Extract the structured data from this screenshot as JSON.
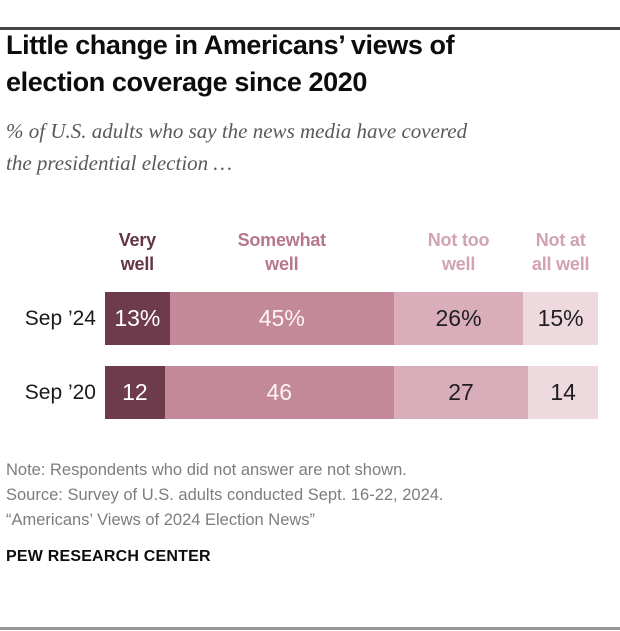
{
  "header": {
    "title": "Little change in Americans’ views of\nelection coverage since 2020",
    "subtitle": "% of U.S. adults who say the news media have covered\nthe presidential election …"
  },
  "chart_data": {
    "type": "bar",
    "orientation": "horizontal",
    "stacked": true,
    "total_shown": 99,
    "categories": [
      "Sep ’24",
      "Sep ’20"
    ],
    "series": [
      {
        "name": "Very well",
        "label": "Very\nwell",
        "color": "#6d3b4c",
        "header_color": "#643548",
        "value_color": "#ffffff",
        "values": [
          13,
          12
        ]
      },
      {
        "name": "Somewhat well",
        "label": "Somewhat\nwell",
        "color": "#c48998",
        "header_color": "#b57789",
        "value_color": "#fdf4f6",
        "values": [
          45,
          46
        ]
      },
      {
        "name": "Not too well",
        "label": "Not too\nwell",
        "color": "#d9aeba",
        "header_color": "#d1a2b0",
        "value_color": "#1f1f1f",
        "values": [
          26,
          27
        ]
      },
      {
        "name": "Not at all well",
        "label": "Not at\nall well",
        "color": "#eed9de",
        "header_color": "#d1a2b0",
        "value_color": "#1f1f1f",
        "values": [
          15,
          14
        ]
      }
    ],
    "rows": [
      {
        "category": "Sep ’24",
        "labels": [
          "13%",
          "45%",
          "26%",
          "15%"
        ]
      },
      {
        "category": "Sep ’20",
        "labels": [
          "12",
          "46",
          "27",
          "14"
        ]
      }
    ],
    "legend_position": "column-headers-above-bars",
    "grid": false
  },
  "footer": {
    "note": "Note: Respondents who did not answer are not shown.",
    "source": "Source: Survey of U.S. adults conducted Sept. 16-22, 2024.",
    "report": "“Americans’ Views of 2024 Election News”",
    "brand": "PEW RESEARCH CENTER"
  }
}
